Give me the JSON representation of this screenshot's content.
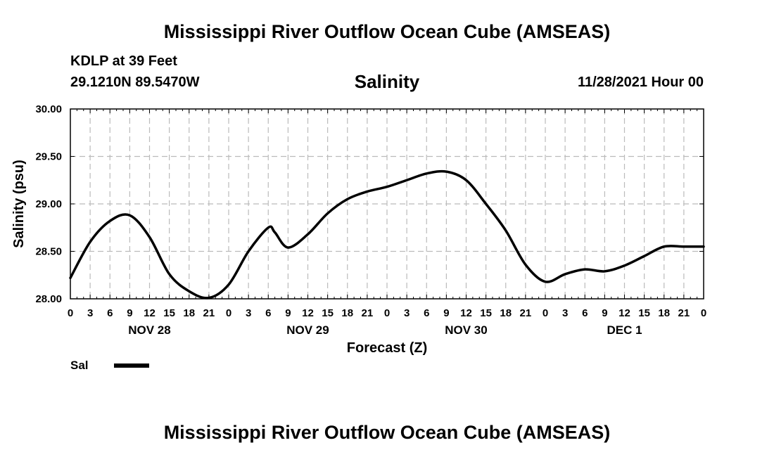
{
  "header": {
    "main_title": "Mississippi River Outflow Ocean Cube (AMSEAS)",
    "station": "KDLP at 39 Feet",
    "coords": "29.1210N  89.5470W",
    "chart_title": "Salinity",
    "run_time": "11/28/2021 Hour 00",
    "footer_title": "Mississippi River Outflow Ocean Cube (AMSEAS)"
  },
  "legend": {
    "label": "Sal"
  },
  "colors": {
    "line": "#000000",
    "grid": "#bbbbbb",
    "background": "#ffffff"
  },
  "chart_data": {
    "type": "line",
    "title": "Salinity",
    "xlabel": "Forecast (Z)",
    "ylabel": "Salinity (psu)",
    "xlim": [
      0,
      96
    ],
    "ylim": [
      28.0,
      30.0
    ],
    "yticks": [
      "28.00",
      "28.50",
      "29.00",
      "29.50",
      "30.00"
    ],
    "ytick_values": [
      28.0,
      28.5,
      29.0,
      29.5,
      30.0
    ],
    "xtick_labels": [
      "0",
      "3",
      "6",
      "9",
      "12",
      "15",
      "18",
      "21",
      "0",
      "3",
      "6",
      "9",
      "12",
      "15",
      "18",
      "21",
      "0",
      "3",
      "6",
      "9",
      "12",
      "15",
      "18",
      "21",
      "0",
      "3",
      "6",
      "9",
      "12",
      "15",
      "18",
      "21",
      "0"
    ],
    "day_labels": [
      {
        "label": "NOV 28",
        "hour": 12
      },
      {
        "label": "NOV 29",
        "hour": 36
      },
      {
        "label": "NOV 30",
        "hour": 60
      },
      {
        "label": "DEC 1",
        "hour": 84
      }
    ],
    "grid": true,
    "series": [
      {
        "name": "Sal",
        "x": [
          0,
          3,
          6,
          9,
          12,
          15,
          18,
          21,
          24,
          27,
          30,
          31,
          33,
          36,
          39,
          42,
          45,
          48,
          51,
          54,
          57,
          60,
          63,
          66,
          69,
          72,
          75,
          78,
          81,
          84,
          87,
          90,
          93,
          96
        ],
        "y": [
          28.22,
          28.6,
          28.82,
          28.88,
          28.65,
          28.26,
          28.08,
          28.01,
          28.15,
          28.5,
          28.75,
          28.7,
          28.54,
          28.68,
          28.9,
          29.05,
          29.13,
          29.18,
          29.25,
          29.32,
          29.34,
          29.25,
          29.0,
          28.72,
          28.36,
          28.18,
          28.26,
          28.31,
          28.29,
          28.35,
          28.45,
          28.55,
          28.55,
          28.55
        ]
      }
    ]
  }
}
